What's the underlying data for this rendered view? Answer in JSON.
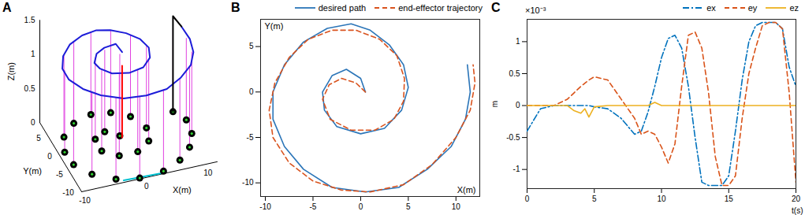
{
  "chart_data": [
    {
      "title": "A",
      "type": "line3d",
      "xlabel": "X(m)",
      "ylabel": "Y(m)",
      "zlabel": "Z(m)",
      "xlim": [
        -10,
        12
      ],
      "ylim": [
        -11,
        8
      ],
      "zlim": [
        0,
        1.5
      ],
      "xticks": [
        -10,
        0,
        10
      ],
      "yticks": [
        -10,
        -5,
        0,
        5
      ],
      "zticks": [
        0,
        0.5,
        1,
        1.5
      ],
      "series": [
        {
          "type": "stem",
          "color": "#e040e0",
          "values": [
            [
              0.3,
              0.5,
              1.2
            ],
            [
              -1.5,
              2.3,
              1.2
            ],
            [
              -3.5,
              1,
              1.2
            ],
            [
              -3.6,
              -2.2,
              1.2
            ],
            [
              -1.5,
              -4.3,
              1.2
            ],
            [
              1.5,
              -4.3,
              1.2
            ],
            [
              4,
              -2.3,
              1.2
            ],
            [
              4.8,
              1,
              1.2
            ],
            [
              3.5,
              4.6,
              1.2
            ],
            [
              1,
              6.6,
              1.2
            ],
            [
              -2,
              7.2,
              1.2
            ],
            [
              -5.2,
              6,
              1.2
            ],
            [
              -7.8,
              3.2,
              1.2
            ],
            [
              -9,
              -0.5,
              1.2
            ],
            [
              -8.8,
              -4,
              1.2
            ],
            [
              -7,
              -7.3,
              1.2
            ],
            [
              -4,
              -9.8,
              1.2
            ],
            [
              -0.5,
              -10.8,
              1.2
            ],
            [
              3.5,
              -10.4,
              1.2
            ],
            [
              6.8,
              -8.6,
              1.2
            ],
            [
              9.3,
              -6,
              1.2
            ],
            [
              10.8,
              -2.8,
              1.2
            ],
            [
              11.2,
              0.8,
              1.2
            ],
            [
              10,
              3.5,
              1.2
            ]
          ]
        },
        {
          "type": "line",
          "color": "#00c0d0",
          "values": [
            [
              -3,
              -10.5,
              0
            ],
            [
              3,
              -10.8,
              0
            ]
          ]
        },
        {
          "type": "scatter",
          "marker": "wheel",
          "color": "#000000",
          "values": [
            [
              0.3,
              0.5,
              0
            ],
            [
              -1.5,
              2.3,
              0
            ],
            [
              -3.5,
              1,
              0
            ],
            [
              -3.6,
              -2.2,
              0
            ],
            [
              -1.5,
              -4.3,
              0
            ],
            [
              1.5,
              -4.3,
              0
            ],
            [
              4,
              -2.3,
              0
            ],
            [
              4.8,
              1,
              0
            ],
            [
              3.5,
              4.6,
              0
            ],
            [
              1,
              6.6,
              0
            ],
            [
              -2,
              7.2,
              0
            ],
            [
              -5.2,
              6,
              0
            ],
            [
              -7.8,
              3.2,
              0
            ],
            [
              -9,
              -0.5,
              0
            ],
            [
              -8.8,
              -4,
              0
            ],
            [
              -7,
              -7.3,
              0
            ],
            [
              -4,
              -9.8,
              0
            ],
            [
              -0.5,
              -10.8,
              0
            ],
            [
              3.5,
              -10.4,
              0
            ],
            [
              6.8,
              -8.6,
              0
            ],
            [
              9.3,
              -6,
              0
            ],
            [
              10.8,
              -2.8,
              0
            ],
            [
              11.2,
              0.8,
              0
            ],
            [
              10,
              3.5,
              0
            ]
          ]
        },
        {
          "type": "line",
          "color": "#1c1cd8",
          "values": [
            [
              0.5,
              0,
              1.25
            ],
            [
              0,
              1.5,
              1.3
            ],
            [
              -1.5,
              2.5,
              1.22
            ],
            [
              -3,
              1.8,
              1.2
            ],
            [
              -4,
              0,
              1.18
            ],
            [
              -3.8,
              -2,
              1.2
            ],
            [
              -2.5,
              -3.8,
              1.2
            ],
            [
              0,
              -4.6,
              1.2
            ],
            [
              2.5,
              -4,
              1.2
            ],
            [
              4.3,
              -2,
              1.2
            ],
            [
              5,
              0.5,
              1.2
            ],
            [
              4.5,
              3,
              1.2
            ],
            [
              3,
              5.2,
              1.2
            ],
            [
              1,
              6.8,
              1.2
            ],
            [
              -1,
              7.5,
              1.2
            ],
            [
              -3.5,
              7,
              1.2
            ],
            [
              -6,
              5.5,
              1.2
            ],
            [
              -8,
              3,
              1.2
            ],
            [
              -9.2,
              0,
              1.2
            ],
            [
              -9.2,
              -3,
              1.2
            ],
            [
              -8,
              -6,
              1.2
            ],
            [
              -6,
              -8.5,
              1.2
            ],
            [
              -3,
              -10.5,
              1.2
            ],
            [
              0.5,
              -11,
              1.2
            ],
            [
              4,
              -10.5,
              1.2
            ],
            [
              7,
              -8.5,
              1.2
            ],
            [
              9.5,
              -6,
              1.2
            ],
            [
              11,
              -3,
              1.2
            ],
            [
              11.5,
              0,
              1.22
            ],
            [
              11.2,
              3,
              1.25
            ]
          ]
        },
        {
          "type": "line",
          "color": "#ff0000",
          "values": [
            [
              0.5,
              0,
              0
            ],
            [
              0.5,
              0,
              1.05
            ]
          ]
        },
        {
          "type": "line",
          "color": "#000000",
          "values": [
            [
              10,
              3.5,
              0
            ],
            [
              10,
              3.5,
              1.4
            ],
            [
              11.2,
              3,
              1.25
            ]
          ]
        }
      ]
    },
    {
      "title": "B",
      "type": "line",
      "xlabel": "X(m)",
      "ylabel": "Y(m)",
      "xlim": [
        -10.5,
        12.5
      ],
      "ylim": [
        -11.5,
        8
      ],
      "xticks": [
        -10,
        -5,
        0,
        5,
        10
      ],
      "yticks": [
        -10,
        -5,
        0,
        5
      ],
      "legend": "upper right",
      "series": [
        {
          "name": "desired path",
          "color": "#2b75b8",
          "line_style": "solid",
          "values": [
            [
              0.5,
              0
            ],
            [
              0,
              1.5
            ],
            [
              -1.5,
              2.5
            ],
            [
              -3,
              1.8
            ],
            [
              -4,
              0
            ],
            [
              -3.8,
              -2
            ],
            [
              -2.5,
              -3.8
            ],
            [
              0,
              -4.6
            ],
            [
              2.5,
              -4
            ],
            [
              4.3,
              -2
            ],
            [
              5,
              0.5
            ],
            [
              4.5,
              3
            ],
            [
              3,
              5.2
            ],
            [
              1,
              6.8
            ],
            [
              -1,
              7.5
            ],
            [
              -3.5,
              7
            ],
            [
              -6,
              5.5
            ],
            [
              -8,
              3
            ],
            [
              -9.2,
              0
            ],
            [
              -9.2,
              -3
            ],
            [
              -8,
              -6
            ],
            [
              -6,
              -8.5
            ],
            [
              -3,
              -10.5
            ],
            [
              0.5,
              -11
            ],
            [
              4,
              -10.5
            ],
            [
              7,
              -8.5
            ],
            [
              9.5,
              -6
            ],
            [
              11,
              -3
            ],
            [
              11.5,
              0
            ],
            [
              11.2,
              3
            ]
          ]
        },
        {
          "name": "end-effector trajectory",
          "color": "#d9531e",
          "line_style": "dashed",
          "values": [
            [
              0.5,
              0
            ],
            [
              -0.5,
              1
            ],
            [
              -2,
              1.5
            ],
            [
              -3.3,
              0.8
            ],
            [
              -4,
              -0.8
            ],
            [
              -3.2,
              -3
            ],
            [
              -1,
              -4.2
            ],
            [
              1.5,
              -4.2
            ],
            [
              3.5,
              -3
            ],
            [
              4.5,
              -1
            ],
            [
              4.6,
              1.5
            ],
            [
              3.8,
              4
            ],
            [
              2,
              5.8
            ],
            [
              -0.5,
              6.8
            ],
            [
              -3,
              6.8
            ],
            [
              -5.5,
              5.8
            ],
            [
              -7.5,
              3.8
            ],
            [
              -9,
              1
            ],
            [
              -9.6,
              -2
            ],
            [
              -9.2,
              -5
            ],
            [
              -7.5,
              -7.8
            ],
            [
              -5,
              -9.8
            ],
            [
              -2,
              -10.8
            ],
            [
              1,
              -11
            ],
            [
              4.5,
              -10.2
            ],
            [
              7.5,
              -8
            ],
            [
              10,
              -5
            ],
            [
              11.5,
              -2
            ],
            [
              12,
              1
            ],
            [
              11.8,
              3
            ]
          ]
        }
      ]
    },
    {
      "title": "C",
      "type": "line",
      "xlabel": "t(s)",
      "ylabel": "m",
      "annotations": [
        "×10⁻³"
      ],
      "x": [
        0,
        1,
        2,
        3,
        3.5,
        4,
        4.3,
        4.6,
        5,
        6,
        7,
        8,
        8.5,
        9,
        9.5,
        10,
        10.5,
        11,
        11.5,
        12,
        12.5,
        13,
        13.5,
        14,
        14.5,
        15,
        15.5,
        16,
        16.5,
        17,
        17.5,
        18,
        18.5,
        19,
        19.5,
        20
      ],
      "xlim": [
        0,
        20
      ],
      "ylim": [
        -1.3,
        1.35
      ],
      "xticks": [
        0,
        5,
        10,
        15,
        20
      ],
      "yticks": [
        -1,
        -0.5,
        0,
        0.5,
        1
      ],
      "legend": "upper right",
      "series": [
        {
          "name": "ex",
          "color": "#0072bd",
          "line_style": "dashdot",
          "values": [
            -0.4,
            -0.05,
            0,
            0,
            0,
            0,
            0,
            0,
            -0.02,
            -0.05,
            -0.2,
            -0.45,
            -0.4,
            -0.1,
            0.3,
            0.75,
            1.05,
            1.1,
            0.9,
            0.3,
            -0.5,
            -1.2,
            -1.25,
            -1.25,
            -1.25,
            -1.1,
            -0.4,
            0.4,
            1.0,
            1.25,
            1.3,
            1.3,
            1.3,
            1.2,
            0.6,
            0.3
          ]
        },
        {
          "name": "ey",
          "color": "#d95319",
          "line_style": "dashed",
          "values": [
            0,
            0,
            0,
            0.1,
            0.2,
            0.3,
            0.35,
            0.4,
            0.45,
            0.4,
            0.1,
            -0.2,
            -0.45,
            -0.4,
            -0.45,
            -0.65,
            -0.9,
            -0.6,
            0.3,
            1.1,
            1.15,
            0.9,
            0.2,
            -0.8,
            -1.25,
            -1.25,
            -1.1,
            -0.2,
            0.5,
            0.9,
            1.25,
            1.3,
            1.3,
            1.2,
            0.2,
            -1.2
          ]
        },
        {
          "name": "ez",
          "color": "#edb120",
          "line_style": "solid",
          "values": [
            0,
            0,
            0,
            0,
            -0.08,
            -0.12,
            -0.05,
            -0.18,
            -0.02,
            0,
            0,
            0,
            0,
            0,
            0.05,
            0,
            0,
            0,
            0,
            0,
            0,
            0,
            0,
            0,
            0,
            0,
            0,
            0,
            0,
            0,
            0,
            0,
            0,
            0,
            0,
            0
          ]
        }
      ]
    }
  ]
}
